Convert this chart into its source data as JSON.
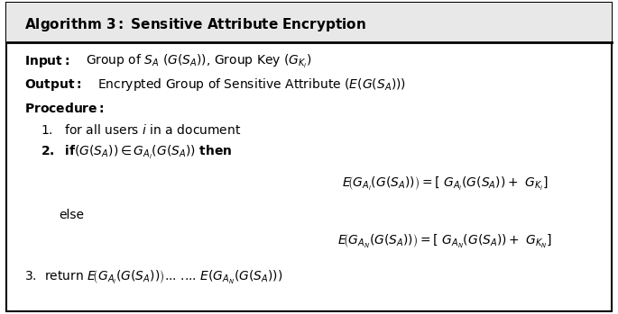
{
  "bg_color": "#ffffff",
  "border_color": "#000000",
  "title_bg": "#e8e8e8",
  "fs_title": 11,
  "fs_body": 10,
  "fs_math": 10
}
